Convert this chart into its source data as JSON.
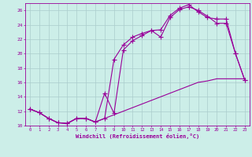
{
  "xlabel": "Windchill (Refroidissement éolien,°C)",
  "background_color": "#cceee8",
  "line_color": "#990099",
  "grid_color": "#aacccc",
  "xlim": [
    -0.5,
    23.5
  ],
  "ylim": [
    10,
    27
  ],
  "yticks": [
    10,
    12,
    14,
    16,
    18,
    20,
    22,
    24,
    26
  ],
  "xticks": [
    0,
    1,
    2,
    3,
    4,
    5,
    6,
    7,
    8,
    9,
    10,
    11,
    12,
    13,
    14,
    15,
    16,
    17,
    18,
    19,
    20,
    21,
    22,
    23
  ],
  "line1_x": [
    0,
    1,
    2,
    3,
    4,
    5,
    6,
    7,
    8,
    9,
    10,
    11,
    12,
    13,
    14,
    15,
    16,
    17,
    18,
    19,
    20,
    21,
    22,
    23
  ],
  "line1_y": [
    12.3,
    11.8,
    11.0,
    10.4,
    10.3,
    11.0,
    11.0,
    10.5,
    14.5,
    11.7,
    20.5,
    21.8,
    22.5,
    23.2,
    23.3,
    25.3,
    26.3,
    26.8,
    25.8,
    25.0,
    24.8,
    24.8,
    20.0,
    16.3
  ],
  "line2_x": [
    0,
    1,
    2,
    3,
    4,
    5,
    6,
    7,
    8,
    9,
    10,
    11,
    12,
    13,
    14,
    15,
    16,
    17,
    18,
    19,
    20,
    21,
    22,
    23
  ],
  "line2_y": [
    12.3,
    11.8,
    11.0,
    10.4,
    10.3,
    11.0,
    11.0,
    10.5,
    11.0,
    19.2,
    21.2,
    22.3,
    22.8,
    23.2,
    22.3,
    25.0,
    26.1,
    26.5,
    26.0,
    25.2,
    24.2,
    24.2,
    20.0,
    16.3
  ],
  "line3_x": [
    0,
    1,
    2,
    3,
    4,
    5,
    6,
    7,
    8,
    9,
    10,
    11,
    12,
    13,
    14,
    15,
    16,
    17,
    18,
    19,
    20,
    21,
    22,
    23
  ],
  "line3_y": [
    12.3,
    11.8,
    11.0,
    10.4,
    10.3,
    11.0,
    11.0,
    10.5,
    11.0,
    11.5,
    12.0,
    12.5,
    13.0,
    13.5,
    14.0,
    14.5,
    15.0,
    15.5,
    16.0,
    16.2,
    16.5,
    16.5,
    16.5,
    16.5
  ]
}
